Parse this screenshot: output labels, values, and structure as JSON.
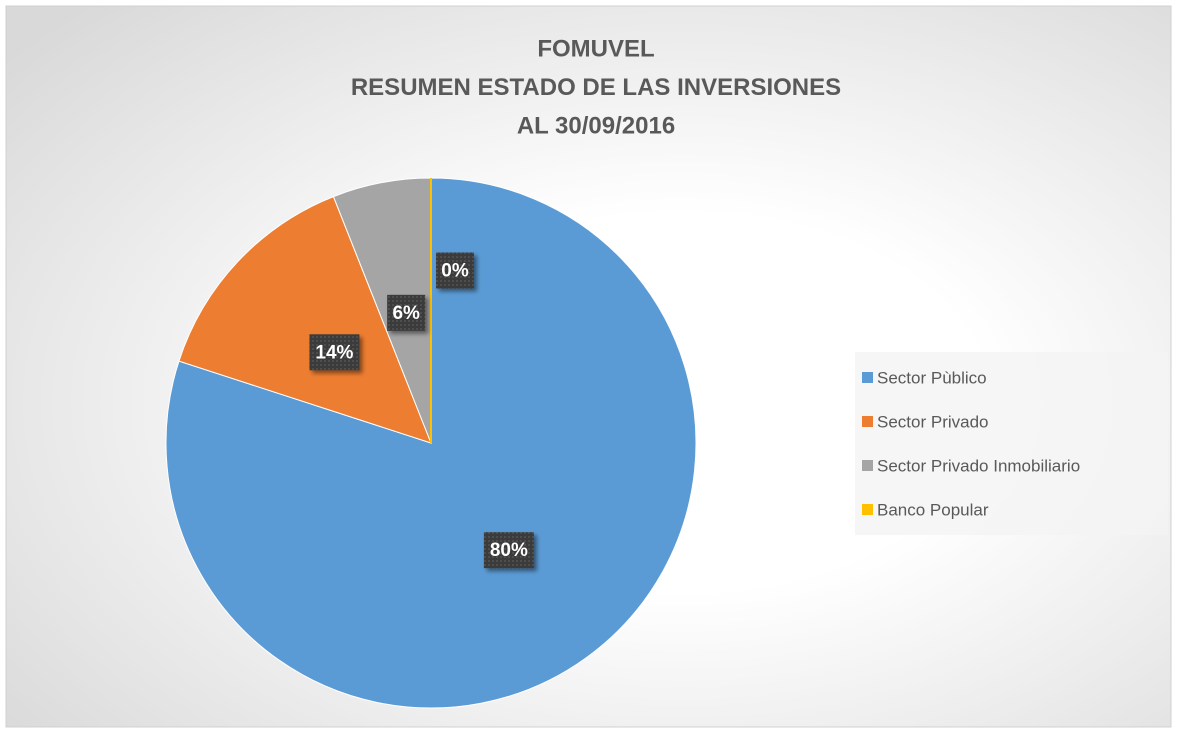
{
  "chart_data": {
    "type": "pie",
    "title": [
      "FOMUVEL",
      "RESUMEN ESTADO DE LAS INVERSIONES",
      "AL 30/09/2016"
    ],
    "categories": [
      "Sector Pùblico",
      "Sector Privado",
      "Sector Privado Inmobiliario",
      "Banco Popular"
    ],
    "values": [
      80,
      14,
      6,
      0
    ],
    "value_labels": [
      "80%",
      "14%",
      "6%",
      "0%"
    ],
    "colors": [
      "#5b9bd5",
      "#ed7d31",
      "#a5a5a5",
      "#ffc000"
    ],
    "legend": "right"
  }
}
